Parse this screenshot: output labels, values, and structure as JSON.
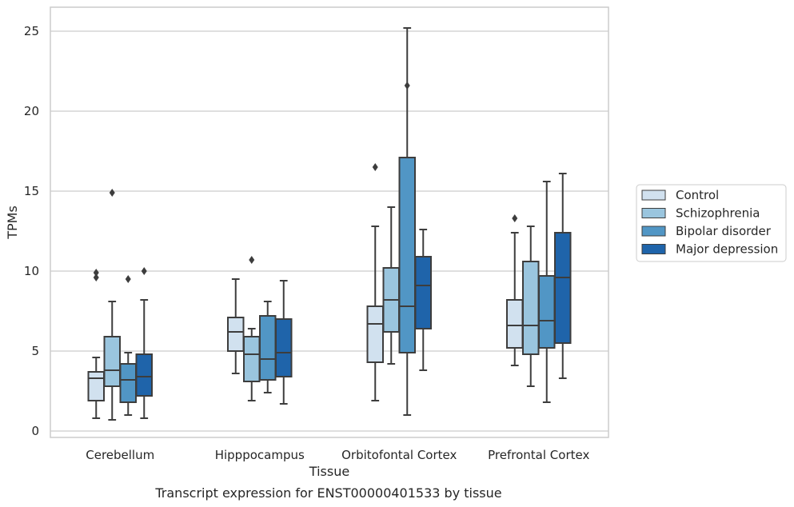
{
  "chart_data": {
    "type": "boxplot",
    "xlabel": "Tissue",
    "ylabel": "TPMs",
    "caption": "Transcript expression for ENST00000401533 by tissue",
    "ylim": [
      -0.4,
      26.5
    ],
    "yticks": [
      0,
      5,
      10,
      15,
      20,
      25
    ],
    "grid": true,
    "legend_position": "right",
    "categories": [
      "Cerebellum",
      "Hipppocampus",
      "Orbitofontal Cortex",
      "Prefrontal Cortex"
    ],
    "series": [
      {
        "name": "Control",
        "color": "#d1e1ef",
        "boxes": [
          {
            "whislo": 0.8,
            "q1": 1.9,
            "med": 3.3,
            "q3": 3.7,
            "whishi": 4.6,
            "fliers": [
              9.6,
              9.9
            ]
          },
          {
            "whislo": 3.6,
            "q1": 5.0,
            "med": 6.2,
            "q3": 7.1,
            "whishi": 9.5,
            "fliers": []
          },
          {
            "whislo": 1.9,
            "q1": 4.3,
            "med": 6.7,
            "q3": 7.8,
            "whishi": 12.8,
            "fliers": [
              16.5
            ]
          },
          {
            "whislo": 4.1,
            "q1": 5.2,
            "med": 6.6,
            "q3": 8.2,
            "whishi": 12.4,
            "fliers": [
              13.3
            ]
          }
        ]
      },
      {
        "name": "Schizophrenia",
        "color": "#9ac5de",
        "boxes": [
          {
            "whislo": 0.7,
            "q1": 2.8,
            "med": 3.8,
            "q3": 5.9,
            "whishi": 8.1,
            "fliers": [
              14.9
            ]
          },
          {
            "whislo": 1.9,
            "q1": 3.1,
            "med": 4.8,
            "q3": 5.9,
            "whishi": 6.4,
            "fliers": [
              10.7
            ]
          },
          {
            "whislo": 4.2,
            "q1": 6.2,
            "med": 8.2,
            "q3": 10.2,
            "whishi": 14.0,
            "fliers": []
          },
          {
            "whislo": 2.8,
            "q1": 4.8,
            "med": 6.6,
            "q3": 10.6,
            "whishi": 12.8,
            "fliers": []
          }
        ]
      },
      {
        "name": "Bipolar disorder",
        "color": "#5196c5",
        "boxes": [
          {
            "whislo": 1.0,
            "q1": 1.8,
            "med": 3.2,
            "q3": 4.2,
            "whishi": 4.9,
            "fliers": [
              9.5
            ]
          },
          {
            "whislo": 2.4,
            "q1": 3.2,
            "med": 4.5,
            "q3": 7.2,
            "whishi": 8.1,
            "fliers": []
          },
          {
            "whislo": 1.0,
            "q1": 4.9,
            "med": 7.8,
            "q3": 17.1,
            "whishi": 25.2,
            "fliers": [
              21.6
            ]
          },
          {
            "whislo": 1.8,
            "q1": 5.2,
            "med": 6.9,
            "q3": 9.7,
            "whishi": 15.6,
            "fliers": []
          }
        ]
      },
      {
        "name": "Major depression",
        "color": "#1f64aa",
        "boxes": [
          {
            "whislo": 0.8,
            "q1": 2.2,
            "med": 3.4,
            "q3": 4.8,
            "whishi": 8.2,
            "fliers": [
              10.0
            ]
          },
          {
            "whislo": 1.7,
            "q1": 3.4,
            "med": 4.9,
            "q3": 7.0,
            "whishi": 9.4,
            "fliers": []
          },
          {
            "whislo": 3.8,
            "q1": 6.4,
            "med": 9.1,
            "q3": 10.9,
            "whishi": 12.6,
            "fliers": []
          },
          {
            "whislo": 3.3,
            "q1": 5.5,
            "med": 9.6,
            "q3": 12.4,
            "whishi": 16.1,
            "fliers": []
          }
        ]
      }
    ]
  }
}
